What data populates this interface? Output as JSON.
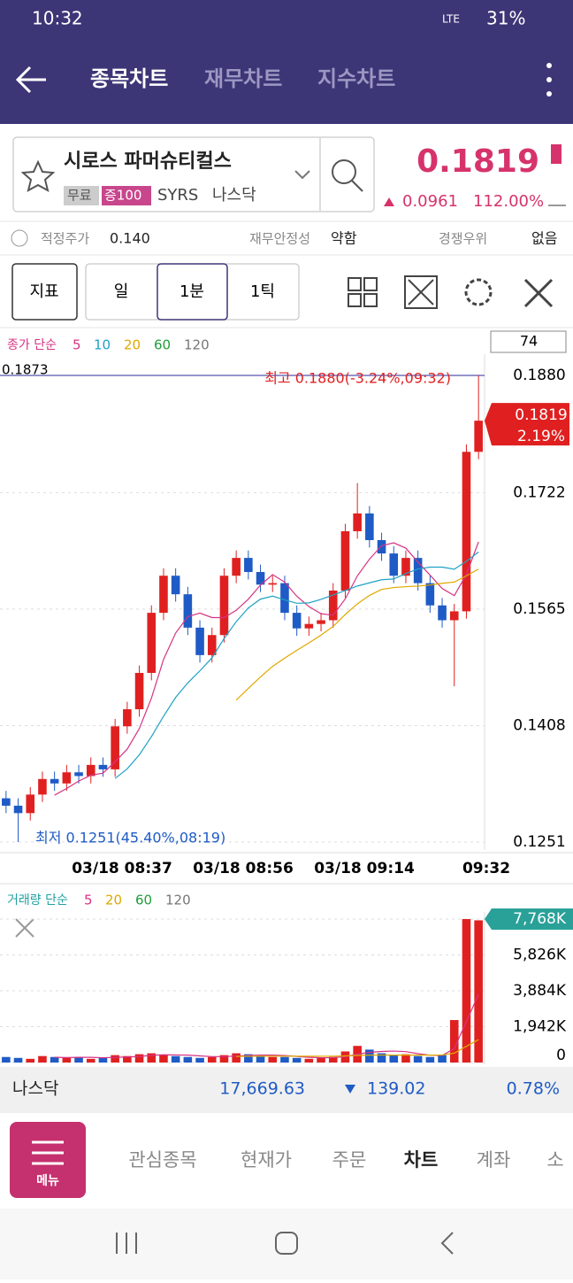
{
  "status": {
    "time": "10:32",
    "network": "LTE",
    "battery": "31%"
  },
  "header": {
    "tabs": [
      "종목차트",
      "재무차트",
      "지수차트"
    ]
  },
  "stock": {
    "name": "시로스 파머슈티컬스",
    "badges": [
      "무료",
      "증100"
    ],
    "ticker": "SYRS",
    "market": "나스닥",
    "price": "0.1819",
    "change": "0.0961",
    "change_pct": "112.00%"
  },
  "info": [
    {
      "label": "적정주가",
      "value": "0.140"
    },
    {
      "label": "재무안정성",
      "value": "약함"
    },
    {
      "label": "경쟁우위",
      "value": "없음"
    }
  ],
  "toolbar": {
    "indicator": "지표",
    "periods": [
      "일",
      "1분",
      "1틱"
    ]
  },
  "chart_data": {
    "type": "candlestick",
    "legend_label": "종가 단순",
    "ma": [
      {
        "period": 5,
        "color": "#d63384"
      },
      {
        "period": 10,
        "color": "#1fa2c4"
      },
      {
        "period": 20,
        "color": "#e0a800"
      },
      {
        "period": 60,
        "color": "#1e9e3a"
      },
      {
        "period": 120,
        "color": "#777777"
      }
    ],
    "count": "74",
    "left_value": "0.1873",
    "high_annotation": "최고 0.1880(-3.24%,09:32)",
    "low_annotation": "최저 0.1251(45.40%,08:19)",
    "current_price": "0.1819",
    "current_pct": "2.19%",
    "x_labels": [
      "03/18 08:37",
      "03/18 08:56",
      "03/18 09:14",
      "09:32"
    ],
    "ylim": [
      0.1251,
      0.188
    ],
    "yticks": [
      {
        "value": 0.188,
        "label": "0.1880"
      },
      0.1722,
      0.1565,
      0.1408,
      0.1251
    ],
    "open": [
      0.131,
      0.13,
      0.129,
      0.1315,
      0.1336,
      0.133,
      0.1345,
      0.134,
      0.1355,
      0.1349,
      0.1407,
      0.143,
      0.1479,
      0.156,
      0.161,
      0.1585,
      0.154,
      0.1503,
      0.153,
      0.161,
      0.1634,
      0.1615,
      0.1598,
      0.16,
      0.156,
      0.1539,
      0.1545,
      0.155,
      0.159,
      0.167,
      0.1694,
      0.1658,
      0.164,
      0.161,
      0.1634,
      0.16,
      0.157,
      0.155,
      0.1562,
      0.1777
    ],
    "high": [
      0.132,
      0.131,
      0.1325,
      0.1346,
      0.1346,
      0.1355,
      0.1355,
      0.1365,
      0.1365,
      0.1417,
      0.144,
      0.1489,
      0.157,
      0.162,
      0.162,
      0.1595,
      0.155,
      0.154,
      0.162,
      0.1644,
      0.1644,
      0.1625,
      0.161,
      0.161,
      0.157,
      0.1555,
      0.156,
      0.16,
      0.168,
      0.1735,
      0.1704,
      0.1668,
      0.165,
      0.1644,
      0.1644,
      0.161,
      0.158,
      0.1572,
      0.1787,
      0.188
    ],
    "low": [
      0.129,
      0.1251,
      0.128,
      0.1305,
      0.132,
      0.132,
      0.133,
      0.133,
      0.1339,
      0.1339,
      0.1397,
      0.142,
      0.1469,
      0.155,
      0.1575,
      0.153,
      0.1493,
      0.1493,
      0.152,
      0.16,
      0.1605,
      0.1588,
      0.1588,
      0.155,
      0.1529,
      0.1529,
      0.1535,
      0.154,
      0.158,
      0.166,
      0.1648,
      0.163,
      0.16,
      0.16,
      0.159,
      0.156,
      0.154,
      0.1461,
      0.1552,
      0.1767
    ],
    "close": [
      0.13,
      0.129,
      0.1315,
      0.1336,
      0.133,
      0.1345,
      0.134,
      0.1355,
      0.1349,
      0.1407,
      0.143,
      0.1479,
      0.156,
      0.161,
      0.1585,
      0.154,
      0.1503,
      0.153,
      0.161,
      0.1634,
      0.1615,
      0.1598,
      0.16,
      0.156,
      0.1539,
      0.1545,
      0.155,
      0.159,
      0.167,
      0.1694,
      0.1658,
      0.164,
      0.161,
      0.1634,
      0.16,
      0.157,
      0.155,
      0.1562,
      0.1777,
      0.1819
    ],
    "up_color": "#e02020",
    "down_color": "#1f5bc6",
    "volume": {
      "legend_label": "거래량 단순",
      "ma": [
        {
          "period": 5,
          "color": "#d63384"
        },
        {
          "period": 20,
          "color": "#e0a800"
        },
        {
          "period": 60,
          "color": "#1e9e3a"
        },
        {
          "period": 120,
          "color": "#777777"
        }
      ],
      "ylim": [
        0,
        7768
      ],
      "yticks": [
        0,
        {
          "value": 1942,
          "label": "1,942K"
        },
        {
          "value": 3884,
          "label": "3,884K"
        },
        {
          "value": 5826,
          "label": "5,826K"
        },
        {
          "value": 7768,
          "label": "7,768K"
        }
      ],
      "values": [
        300,
        250,
        200,
        350,
        300,
        250,
        300,
        200,
        250,
        400,
        350,
        450,
        500,
        400,
        350,
        300,
        250,
        300,
        400,
        500,
        450,
        350,
        300,
        300,
        250,
        200,
        250,
        300,
        600,
        900,
        700,
        500,
        400,
        450,
        350,
        300,
        400,
        2300,
        7768,
        7700
      ]
    }
  },
  "index_bar": {
    "name": "나스닥",
    "value": "17,669.63",
    "change": "139.02",
    "change_pct": "0.78%"
  },
  "bottom_nav": {
    "menu": "메뉴",
    "tabs": [
      "관심종목",
      "현재가",
      "주문",
      "차트",
      "계좌",
      "소"
    ]
  }
}
